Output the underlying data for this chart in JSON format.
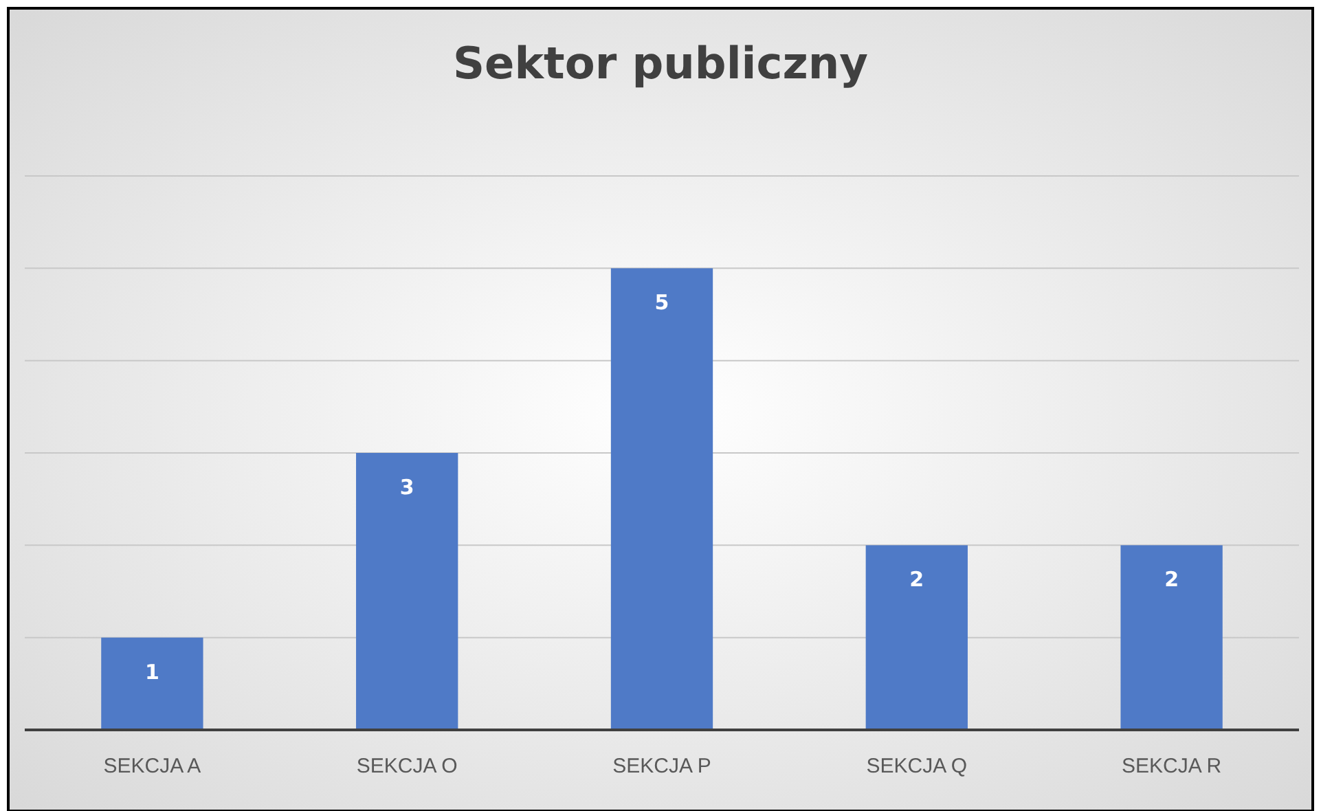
{
  "chart_data": {
    "type": "bar",
    "title": "Sektor publiczny",
    "categories": [
      "SEKCJA A",
      "SEKCJA O",
      "SEKCJA P",
      "SEKCJA Q",
      "SEKCJA R"
    ],
    "values": [
      1,
      3,
      5,
      2,
      2
    ],
    "color": "#4f7ac7",
    "ylim": [
      0,
      6
    ],
    "yticks": [
      {
        "value": 0,
        "label": null
      },
      {
        "value": 1,
        "label": null
      },
      {
        "value": 2,
        "label": null
      },
      {
        "value": 3,
        "label": null
      },
      {
        "value": 4,
        "label": null
      },
      {
        "value": 5,
        "label": null
      },
      {
        "value": 6,
        "label": null
      }
    ],
    "tick_labels": "x",
    "grid": true,
    "data_labels": true
  }
}
